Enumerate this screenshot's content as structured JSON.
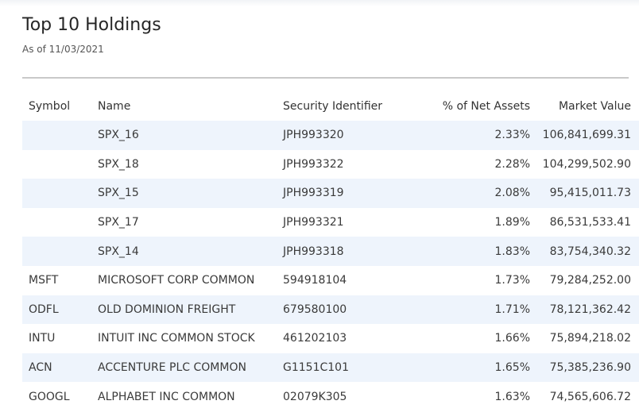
{
  "header": {
    "title": "Top 10 Holdings",
    "as_of": "As of 11/03/2021"
  },
  "table": {
    "columns": [
      "Symbol",
      "Name",
      "Security Identifier",
      "% of Net Assets",
      "Market Value"
    ],
    "rows": [
      {
        "symbol": "",
        "name": "SPX_16",
        "security_id": "JPH993320",
        "pct": "2.33%",
        "market_value": "106,841,699.31"
      },
      {
        "symbol": "",
        "name": "SPX_18",
        "security_id": "JPH993322",
        "pct": "2.28%",
        "market_value": "104,299,502.90"
      },
      {
        "symbol": "",
        "name": "SPX_15",
        "security_id": "JPH993319",
        "pct": "2.08%",
        "market_value": "95,415,011.73"
      },
      {
        "symbol": "",
        "name": "SPX_17",
        "security_id": "JPH993321",
        "pct": "1.89%",
        "market_value": "86,531,533.41"
      },
      {
        "symbol": "",
        "name": "SPX_14",
        "security_id": "JPH993318",
        "pct": "1.83%",
        "market_value": "83,754,340.32"
      },
      {
        "symbol": "MSFT",
        "name": "MICROSOFT CORP COMMON",
        "security_id": "594918104",
        "pct": "1.73%",
        "market_value": "79,284,252.00"
      },
      {
        "symbol": "ODFL",
        "name": "OLD DOMINION FREIGHT",
        "security_id": "679580100",
        "pct": "1.71%",
        "market_value": "78,121,362.42"
      },
      {
        "symbol": "INTU",
        "name": "INTUIT INC COMMON STOCK",
        "security_id": "461202103",
        "pct": "1.66%",
        "market_value": "75,894,218.02"
      },
      {
        "symbol": "ACN",
        "name": "ACCENTURE PLC COMMON",
        "security_id": "G1151C101",
        "pct": "1.65%",
        "market_value": "75,385,236.90"
      },
      {
        "symbol": "GOOGL",
        "name": "ALPHABET INC COMMON",
        "security_id": "02079K305",
        "pct": "1.63%",
        "market_value": "74,565,606.72"
      }
    ]
  }
}
